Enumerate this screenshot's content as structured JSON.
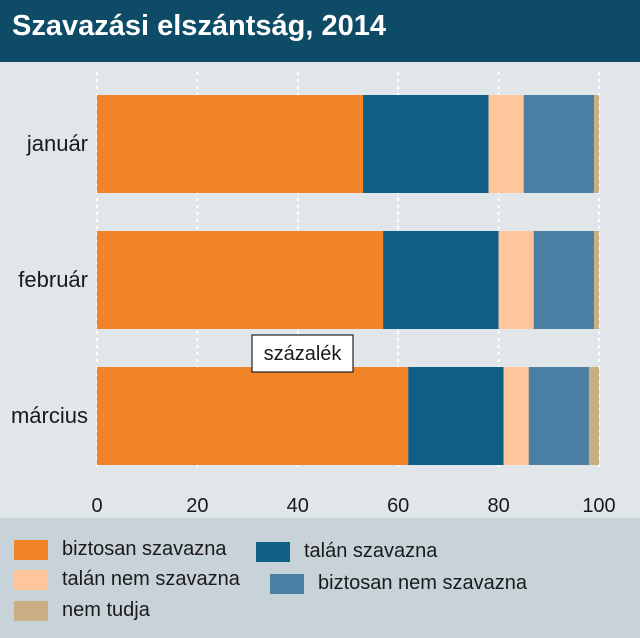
{
  "title": "Szavazási elszántság, 2014",
  "unit_label": "százalék",
  "colors": {
    "background": "#e1e6ea",
    "header": "#0e4b66",
    "legend_bg": "#c8d2d9"
  },
  "chart_data": {
    "type": "bar",
    "orientation": "horizontal",
    "stacked": true,
    "title": "Szavazási elszántság, 2014",
    "categories": [
      "január",
      "február",
      "március"
    ],
    "xlim": [
      0,
      100
    ],
    "xticks": [
      "0",
      "20",
      "40",
      "60",
      "80",
      "100"
    ],
    "grid": "vertical dotted",
    "legend_position": "bottom",
    "series": [
      {
        "name": "biztosan szavazna",
        "color": "#f18329",
        "values": [
          53,
          57,
          62
        ]
      },
      {
        "name": "talán szavazna",
        "color": "#0f5e85",
        "values": [
          25,
          23,
          19
        ]
      },
      {
        "name": "talán nem szavazna",
        "color": "#ffc69c",
        "values": [
          7,
          7,
          5
        ]
      },
      {
        "name": "biztosan nem szavazna",
        "color": "#4a7fa3",
        "values": [
          14,
          12,
          12
        ]
      },
      {
        "name": "nem tudja",
        "color": "#c9ae84",
        "values": [
          1,
          1,
          2
        ]
      }
    ]
  }
}
